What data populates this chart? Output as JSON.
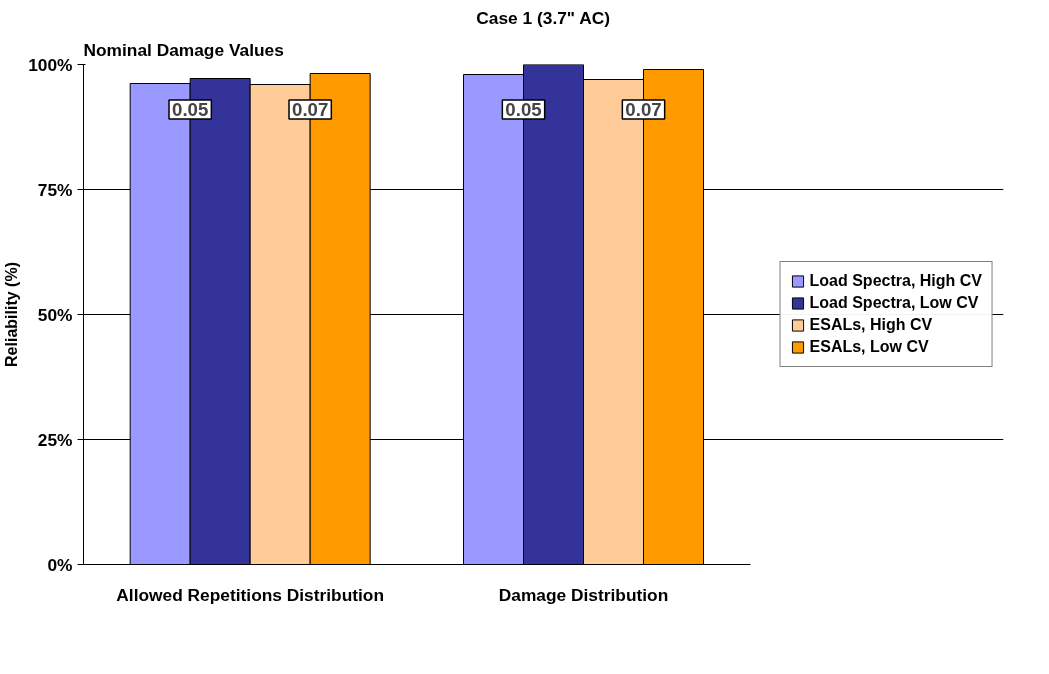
{
  "chart_data": {
    "type": "bar",
    "title": "Case 1 (3.7\" AC)",
    "subtitle": "Nominal Damage Values",
    "ylabel": "Reliability (%)",
    "categories": [
      "Allowed Repetitions Distribution",
      "Damage Distribution"
    ],
    "series": [
      {
        "name": "Load Spectra, High CV",
        "color": "#9999ff",
        "values": [
          96.2,
          98
        ]
      },
      {
        "name": "Load Spectra, Low CV",
        "color": "#333399",
        "values": [
          97.2,
          100
        ]
      },
      {
        "name": "ESALs, High CV",
        "color": "#ffcc99",
        "values": [
          96,
          97
        ]
      },
      {
        "name": "ESALs, Low CV",
        "color": "#ff9900",
        "values": [
          98.2,
          99
        ]
      }
    ],
    "annotations": [
      "0.05",
      "0.07",
      "0.05",
      "0.07"
    ],
    "ylim": [
      0,
      100
    ],
    "yticks": [
      {
        "value": 0,
        "label": "0%"
      },
      {
        "value": 25,
        "label": "25%"
      },
      {
        "value": 50,
        "label": "50%"
      },
      {
        "value": 75,
        "label": "75%"
      },
      {
        "value": 100,
        "label": "100%"
      }
    ],
    "grid": "y",
    "legend": "right"
  }
}
